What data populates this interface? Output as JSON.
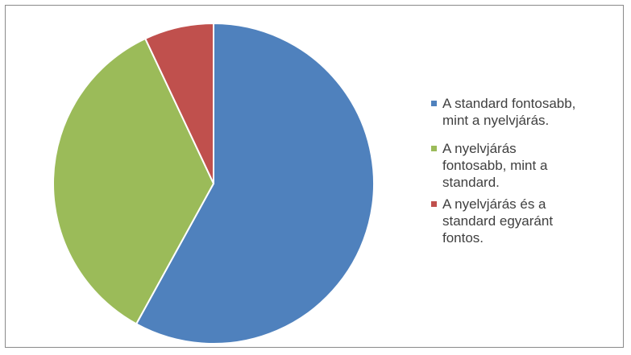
{
  "chart_data": {
    "type": "pie",
    "title": "",
    "slices": [
      {
        "label": "A standard fontosabb,\nmint a nyelvjárás.",
        "value": 58,
        "color": "#4f81bd"
      },
      {
        "label": "A nyelvjárás\nfontosabb, mint a\nstandard.",
        "value": 35,
        "color": "#9bbb59"
      },
      {
        "label": "A nyelvjárás és a\nstandard egyaránt\nfontos.",
        "value": 7,
        "color": "#c0504d"
      }
    ],
    "legend_position": "right"
  }
}
